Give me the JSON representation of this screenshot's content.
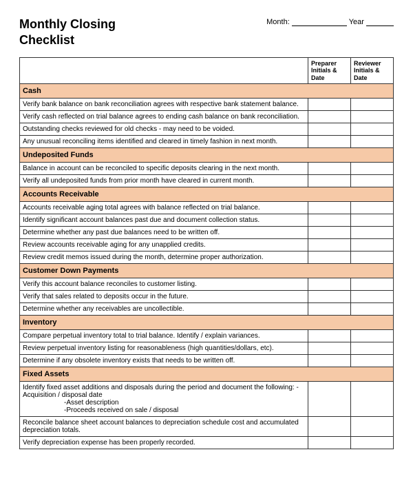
{
  "header": {
    "title_line1": "Monthly Closing",
    "title_line2": "Checklist",
    "month_label": "Month:",
    "year_label": "Year"
  },
  "columns": {
    "main": "",
    "preparer": "Preparer Initials & Date",
    "reviewer": "Reviewer Initials & Date"
  },
  "colors": {
    "section_bg": "#f6c9a7",
    "border": "#333333",
    "background": "#ffffff",
    "text": "#000000"
  },
  "sections": [
    {
      "heading": "Cash",
      "items": [
        "Verify bank balance on bank reconciliation agrees with respective bank statement balance.",
        "Verify cash reflected on trial balance agrees to ending cash balance on bank reconciliation.",
        "Outstanding checks reviewed for old checks - may need to be voided.",
        "Any unusual reconciling items identified and cleared in timely fashion in next month."
      ]
    },
    {
      "heading": "Undeposited Funds",
      "items": [
        "Balance in account can be reconciled to specific deposits clearing in the next month.",
        "Verify all undeposited funds from prior month have cleared in current month."
      ]
    },
    {
      "heading": "Accounts Receivable",
      "items": [
        "Accounts receivable aging total agrees with balance reflected on trial balance.",
        "Identify significant account balances past due and document collection status.",
        "Determine whether any past due balances need to be written off.",
        "Review accounts receivable aging for any unapplied credits.",
        "Review credit memos issued during the month, determine proper authorization."
      ]
    },
    {
      "heading": "Customer Down Payments",
      "items": [
        "Verify this account balance reconciles to customer listing.",
        "Verify that sales related to deposits occur in the future.",
        "Determine whether any receivables are uncollectible."
      ]
    },
    {
      "heading": "Inventory",
      "items": [
        "Compare perpetual inventory total to trial balance. Identify / explain variances.",
        "Review perpetual inventory listing for reasonableness (high quantities/dollars, etc).",
        "Determine if any obsolete inventory exists that needs to be written off."
      ]
    },
    {
      "heading": "Fixed Assets",
      "items": [
        "Identify fixed asset additions and disposals during the period and document the following: -Acquisition / disposal date\n-Asset description\n-Proceeds received on sale / disposal",
        "Reconcile balance sheet account balances to depreciation schedule cost and accumulated depreciation totals.",
        "Verify depreciation expense has been properly recorded."
      ]
    }
  ]
}
